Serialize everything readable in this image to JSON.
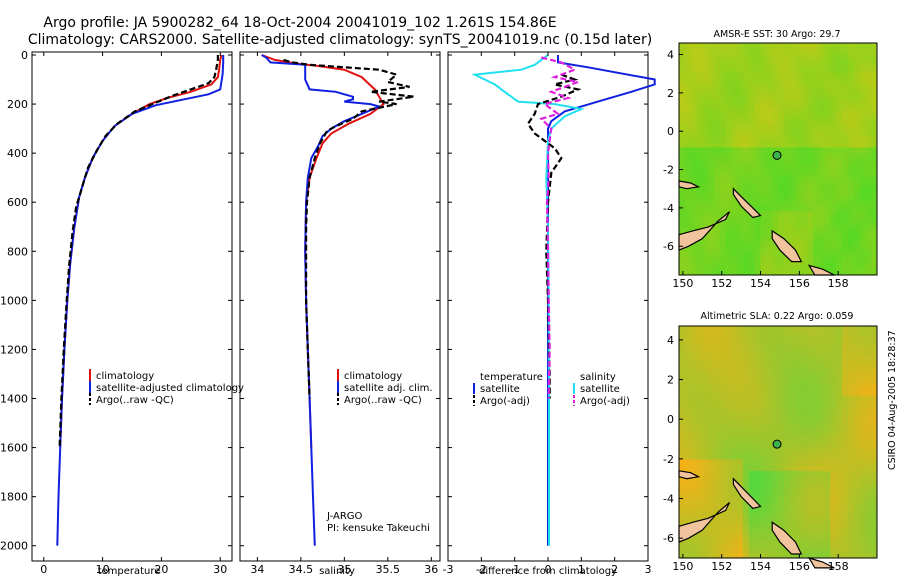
{
  "header": {
    "line1": "Argo profile: JA 5900282_64 18-Oct-2004 20041019_102 1.261S 154.86E",
    "line2": "Climatology: CARS2000. Satellite-adjusted climatology: synTS_20041019.nc (0.15d later)"
  },
  "colors": {
    "climatology": "#e01010",
    "satellite": "#1020e0",
    "argo": "#000000",
    "salinity_sat": "#20e0f0",
    "salinity_argo": "#e020e0"
  },
  "depth_axis": {
    "ylim": [
      0,
      2050
    ],
    "ticks": [
      "0",
      "200",
      "400",
      "600",
      "800",
      "1000",
      "1200",
      "1400",
      "1600",
      "1800",
      "2000"
    ]
  },
  "chart_data": [
    {
      "type": "line",
      "name": "temperature-profile",
      "xlabel": "temperature",
      "xlim": [
        -2,
        32
      ],
      "xticks": [
        "0",
        "10",
        "20",
        "30"
      ],
      "legend": [
        "climatology",
        "satellite-adjusted climatology",
        "Argo(..raw -QC)"
      ],
      "series": [
        {
          "name": "climatology",
          "style": "solid",
          "color": "#e01010",
          "points": [
            [
              30.2,
              0
            ],
            [
              30,
              20
            ],
            [
              29.8,
              60
            ],
            [
              29.6,
              90
            ],
            [
              28.5,
              120
            ],
            [
              25,
              150
            ],
            [
              21,
              175
            ],
            [
              18,
              200
            ],
            [
              15,
              240
            ],
            [
              12,
              290
            ],
            [
              10,
              350
            ],
            [
              8.3,
              420
            ],
            [
              7,
              500
            ],
            [
              6,
              580
            ],
            [
              5.2,
              700
            ],
            [
              4.5,
              850
            ],
            [
              4,
              1000
            ],
            [
              3.5,
              1200
            ],
            [
              3.1,
              1400
            ],
            [
              2.8,
              1600
            ]
          ]
        },
        {
          "name": "satellite-adjusted climatology",
          "style": "solid",
          "color": "#1020e0",
          "points": [
            [
              30.5,
              0
            ],
            [
              30.5,
              30
            ],
            [
              30.4,
              80
            ],
            [
              30.2,
              110
            ],
            [
              30,
              140
            ],
            [
              28,
              160
            ],
            [
              24,
              180
            ],
            [
              19,
              205
            ],
            [
              15,
              240
            ],
            [
              12,
              290
            ],
            [
              10,
              350
            ],
            [
              8.3,
              420
            ],
            [
              7,
              500
            ],
            [
              6,
              580
            ],
            [
              5.2,
              700
            ],
            [
              4.5,
              850
            ],
            [
              4,
              1000
            ],
            [
              3.5,
              1200
            ],
            [
              3.1,
              1400
            ],
            [
              2.8,
              1600
            ],
            [
              2.5,
              1800
            ],
            [
              2.3,
              2000
            ]
          ]
        },
        {
          "name": "Argo(..raw -QC)",
          "style": "dashed",
          "color": "#000000",
          "points": [
            [
              29.6,
              0
            ],
            [
              29.6,
              20
            ],
            [
              29.3,
              60
            ],
            [
              29,
              90
            ],
            [
              28,
              115
            ],
            [
              25,
              140
            ],
            [
              22,
              165
            ],
            [
              19,
              195
            ],
            [
              15.5,
              230
            ],
            [
              12.5,
              280
            ],
            [
              10.5,
              330
            ],
            [
              9,
              390
            ],
            [
              7.5,
              460
            ],
            [
              6.5,
              540
            ],
            [
              5.5,
              620
            ],
            [
              4.9,
              720
            ],
            [
              4.3,
              860
            ],
            [
              3.9,
              1000
            ],
            [
              3.4,
              1200
            ],
            [
              3,
              1400
            ],
            [
              2.7,
              1600
            ]
          ]
        }
      ]
    },
    {
      "type": "line",
      "name": "salinity-profile",
      "xlabel": "salinity",
      "xlim": [
        33.8,
        36.1
      ],
      "xticks": [
        "34",
        "34.5",
        "35",
        "35.5",
        "36"
      ],
      "legend": [
        "climatology",
        "satellite adj. clim.",
        "Argo(..raw -QC)"
      ],
      "series": [
        {
          "name": "climatology",
          "style": "solid",
          "color": "#e01010",
          "points": [
            [
              34.05,
              0
            ],
            [
              34.2,
              20
            ],
            [
              34.45,
              35
            ],
            [
              34.7,
              45
            ],
            [
              35,
              60
            ],
            [
              35.2,
              90
            ],
            [
              35.35,
              140
            ],
            [
              35.45,
              200
            ],
            [
              35.3,
              240
            ],
            [
              35.05,
              280
            ],
            [
              34.85,
              320
            ],
            [
              34.75,
              360
            ],
            [
              34.68,
              420
            ],
            [
              34.6,
              500
            ],
            [
              34.56,
              600
            ],
            [
              34.55,
              800
            ],
            [
              34.56,
              1000
            ],
            [
              34.58,
              1200
            ],
            [
              34.6,
              1400
            ],
            [
              34.62,
              1600
            ]
          ]
        },
        {
          "name": "satellite adj. clim.",
          "style": "solid",
          "color": "#1020e0",
          "points": [
            [
              34.05,
              0
            ],
            [
              34.1,
              10
            ],
            [
              34.15,
              30
            ],
            [
              34.55,
              40
            ],
            [
              34.55,
              100
            ],
            [
              34.6,
              140
            ],
            [
              34.9,
              150
            ],
            [
              35,
              160
            ],
            [
              35.1,
              170
            ],
            [
              35.1,
              180
            ],
            [
              35.0,
              190
            ],
            [
              35.3,
              200
            ],
            [
              35.4,
              210
            ],
            [
              35.2,
              240
            ],
            [
              35,
              270
            ],
            [
              34.85,
              300
            ],
            [
              34.75,
              330
            ],
            [
              34.7,
              370
            ],
            [
              34.62,
              420
            ],
            [
              34.58,
              500
            ],
            [
              34.56,
              600
            ],
            [
              34.55,
              800
            ],
            [
              34.56,
              1000
            ],
            [
              34.58,
              1200
            ],
            [
              34.6,
              1400
            ],
            [
              34.62,
              1600
            ],
            [
              34.64,
              1800
            ],
            [
              34.66,
              2000
            ]
          ]
        },
        {
          "name": "Argo(..raw -QC)",
          "style": "dashed",
          "color": "#000000",
          "points": [
            [
              34.3,
              20
            ],
            [
              34.4,
              30
            ],
            [
              34.6,
              40
            ],
            [
              35.0,
              50
            ],
            [
              35.4,
              60
            ],
            [
              35.6,
              80
            ],
            [
              35.5,
              110
            ],
            [
              35.75,
              130
            ],
            [
              35.3,
              150
            ],
            [
              35.8,
              170
            ],
            [
              35.4,
              190
            ],
            [
              35.6,
              200
            ],
            [
              35.2,
              230
            ],
            [
              35.1,
              260
            ],
            [
              34.9,
              290
            ],
            [
              34.8,
              310
            ],
            [
              34.72,
              360
            ],
            [
              34.66,
              420
            ],
            [
              34.6,
              500
            ],
            [
              34.57,
              600
            ],
            [
              34.56,
              700
            ],
            [
              34.56,
              1000
            ],
            [
              34.58,
              1200
            ],
            [
              34.6,
              1400
            ]
          ]
        }
      ]
    },
    {
      "type": "line",
      "name": "difference-profile",
      "xlabel": "difference from climatology",
      "xlim": [
        -3,
        3
      ],
      "xticks": [
        "-3",
        "-2",
        "-1",
        "0",
        "1",
        "2",
        "3"
      ],
      "legend_left_title": "temperature",
      "legend_right_title": "salinity",
      "legend": [
        "satellite",
        "Argo(-adj)",
        "satellite",
        "Argo(-adj)"
      ],
      "series": [
        {
          "name": "temperature satellite",
          "style": "solid",
          "color": "#1020e0",
          "points": [
            [
              0.3,
              0
            ],
            [
              0.3,
              30
            ],
            [
              1.2,
              50
            ],
            [
              3.2,
              100
            ],
            [
              3.2,
              120
            ],
            [
              2.5,
              150
            ],
            [
              1.5,
              190
            ],
            [
              0.5,
              230
            ],
            [
              0.1,
              270
            ],
            [
              0,
              300
            ],
            [
              0,
              400
            ],
            [
              0,
              2000
            ]
          ]
        },
        {
          "name": "salinity satellite",
          "style": "solid",
          "color": "#20e0f0",
          "points": [
            [
              0,
              0
            ],
            [
              -0.4,
              40
            ],
            [
              -0.8,
              60
            ],
            [
              -2.2,
              80
            ],
            [
              -1.6,
              120
            ],
            [
              -1.2,
              160
            ],
            [
              -0.9,
              190
            ],
            [
              0.2,
              200
            ],
            [
              0.6,
              210
            ],
            [
              1,
              220
            ],
            [
              0.5,
              250
            ],
            [
              0.1,
              300
            ],
            [
              0,
              350
            ],
            [
              -0.05,
              500
            ],
            [
              0,
              700
            ],
            [
              0.02,
              1000
            ],
            [
              0.03,
              1400
            ],
            [
              0.03,
              2000
            ]
          ]
        },
        {
          "name": "temperature Argo(-adj)",
          "style": "dashed",
          "color": "#000000",
          "points": [
            [
              0.4,
              80
            ],
            [
              0.8,
              100
            ],
            [
              0.2,
              120
            ],
            [
              0.9,
              140
            ],
            [
              0.4,
              170
            ],
            [
              -0.3,
              200
            ],
            [
              -0.4,
              240
            ],
            [
              -0.6,
              280
            ],
            [
              -0.4,
              320
            ],
            [
              0.2,
              380
            ],
            [
              0.4,
              420
            ],
            [
              0.1,
              480
            ],
            [
              0,
              600
            ],
            [
              -0.05,
              800
            ],
            [
              0,
              1000
            ],
            [
              0.05,
              1300
            ],
            [
              0.05,
              1400
            ]
          ]
        },
        {
          "name": "salinity Argo(-adj)",
          "style": "dashed",
          "color": "#e020e0",
          "points": [
            [
              -0.2,
              10
            ],
            [
              0.4,
              30
            ],
            [
              0.8,
              60
            ],
            [
              0.2,
              90
            ],
            [
              0.9,
              110
            ],
            [
              0.1,
              150
            ],
            [
              0.6,
              175
            ],
            [
              -0.1,
              200
            ],
            [
              0.3,
              240
            ],
            [
              -0.2,
              260
            ],
            [
              0.1,
              300
            ],
            [
              0,
              400
            ],
            [
              0.02,
              500
            ],
            [
              -0.03,
              600
            ],
            [
              0,
              800
            ],
            [
              0.02,
              1000
            ],
            [
              0.05,
              1200
            ],
            [
              0.02,
              1400
            ]
          ]
        }
      ]
    },
    {
      "type": "heatmap",
      "name": "sst-map",
      "title": "AMSR-E SST: 30 Argo: 29.7",
      "xlim": [
        149.8,
        160
      ],
      "ylim": [
        -7.5,
        4.6
      ],
      "xticks": [
        "150",
        "152",
        "154",
        "156",
        "158"
      ],
      "yticks": [
        "4",
        "2",
        "0",
        "-2",
        "-4",
        "-6"
      ],
      "argo_point": [
        154.85,
        -1.26
      ]
    },
    {
      "type": "heatmap",
      "name": "sla-map",
      "title": "Altimetric SLA: 0.22 Argo: 0.059",
      "xlim": [
        149.8,
        160
      ],
      "ylim": [
        -7.0,
        4.7
      ],
      "xticks": [
        "150",
        "152",
        "154",
        "156",
        "158"
      ],
      "yticks": [
        "4",
        "2",
        "0",
        "-2",
        "-4",
        "-6"
      ],
      "argo_point": [
        154.85,
        -1.26
      ]
    }
  ],
  "annotations": {
    "platform": "J-ARGO",
    "pi": "PI: kensuke Takeuchi",
    "footer": "CSIRO 04-Aug-2005 18:28:37"
  }
}
